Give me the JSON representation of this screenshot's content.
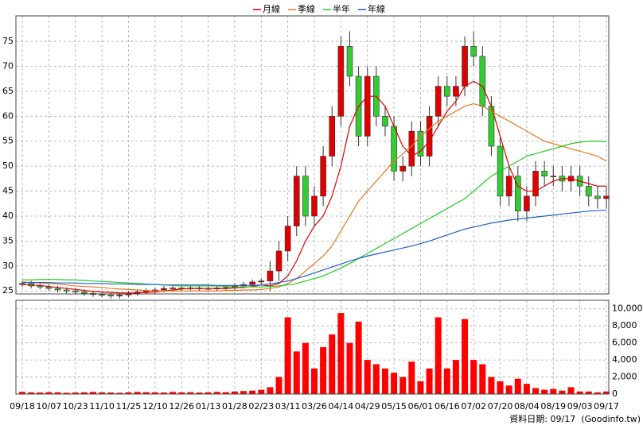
{
  "chart_data": [
    {
      "type": "candlestick",
      "x": [
        0,
        1,
        2,
        3,
        4,
        5,
        6,
        7,
        8,
        9,
        10,
        11,
        12,
        13,
        14,
        15,
        16,
        17,
        18,
        19,
        20,
        21,
        22,
        23,
        24,
        25,
        26,
        27,
        28,
        29,
        30,
        31,
        32,
        33,
        34,
        35,
        36,
        37,
        38,
        39,
        40,
        41,
        42,
        43,
        44,
        45,
        46,
        47,
        48,
        49,
        50,
        51,
        52,
        53,
        54,
        55,
        56,
        57,
        58,
        59,
        60,
        61,
        62,
        63,
        64,
        65,
        66
      ],
      "open": [
        26.3,
        26.5,
        26,
        25.8,
        25.5,
        25.2,
        25,
        24.8,
        24.5,
        24.3,
        24.2,
        24,
        24.2,
        24.5,
        24.8,
        25,
        25.2,
        25.5,
        25.6,
        25.5,
        25.6,
        25.5,
        25.4,
        25.6,
        25.7,
        26,
        26.3,
        26.8,
        27,
        29,
        33,
        38,
        48,
        40,
        44,
        52,
        60,
        74,
        68,
        56,
        68,
        60,
        58,
        49,
        50,
        57,
        52,
        60,
        66,
        64,
        66,
        74,
        72,
        62,
        54,
        44,
        48,
        41,
        44,
        49,
        48,
        48,
        47,
        48,
        46,
        44,
        43.5
      ],
      "high": [
        27,
        27,
        26.5,
        26.3,
        26,
        25.7,
        25.5,
        25.3,
        25,
        24.8,
        24.7,
        24.7,
        25,
        25.3,
        25.5,
        25.7,
        26,
        26.1,
        26.1,
        26.1,
        26.1,
        26,
        26.1,
        26.2,
        26.5,
        26.8,
        27.3,
        27.5,
        31,
        35,
        40,
        50,
        50,
        46,
        54,
        62,
        76,
        77,
        70,
        70,
        70,
        62,
        60,
        52,
        59,
        59,
        62,
        68,
        68,
        68,
        76,
        77,
        74,
        64,
        56,
        50,
        50,
        46,
        51,
        51,
        50,
        50,
        50,
        50,
        48,
        46,
        46
      ],
      "low": [
        25.8,
        25.5,
        25.3,
        25,
        24.7,
        24.5,
        24.3,
        24,
        23.8,
        23.7,
        23.5,
        23.5,
        23.7,
        24,
        24.3,
        24.5,
        24.7,
        25,
        25,
        25,
        25,
        24.9,
        24.9,
        25.1,
        25.2,
        25.5,
        25.8,
        26.3,
        25,
        27,
        31,
        36,
        38,
        38,
        42,
        50,
        58,
        66,
        54,
        54,
        58,
        56,
        47,
        47,
        48,
        50,
        50,
        58,
        62,
        62,
        64,
        70,
        60,
        52,
        42,
        42,
        39,
        39,
        42,
        46,
        46,
        45,
        45,
        44,
        42,
        41.5,
        41.5
      ],
      "close": [
        26.5,
        26,
        25.8,
        25.5,
        25.2,
        25,
        24.8,
        24.5,
        24.3,
        24.2,
        24,
        24.2,
        24.5,
        24.8,
        25,
        25.2,
        25.5,
        25.6,
        25.5,
        25.6,
        25.5,
        25.4,
        25.6,
        25.7,
        26,
        26.3,
        26.8,
        27,
        29,
        33,
        38,
        48,
        40,
        44,
        52,
        60,
        74,
        68,
        56,
        68,
        60,
        58,
        49,
        50,
        57,
        52,
        60,
        66,
        64,
        66,
        74,
        72,
        62,
        54,
        44,
        48,
        41,
        44,
        49,
        48,
        48,
        47,
        48,
        46,
        44,
        43.5,
        44
      ],
      "up_color": "#e00000",
      "down_color": "#33cc33",
      "series": [
        {
          "name": "月線",
          "color": "#dd0000",
          "values": [
            26.3,
            26.2,
            26.1,
            25.9,
            25.7,
            25.5,
            25.3,
            25.1,
            24.9,
            24.8,
            24.7,
            24.6,
            24.6,
            24.6,
            24.7,
            24.8,
            25,
            25.2,
            25.4,
            25.5,
            25.5,
            25.5,
            25.5,
            25.5,
            25.6,
            25.7,
            25.9,
            26.2,
            26,
            26.5,
            28,
            31,
            35,
            38,
            40,
            44,
            50,
            58,
            62,
            64,
            64,
            62,
            58,
            54,
            52,
            53,
            55,
            58,
            61,
            63,
            66,
            67,
            66,
            62,
            56,
            50,
            46,
            45,
            45,
            46,
            47,
            47.5,
            47.5,
            47,
            46.5,
            46,
            46
          ]
        },
        {
          "name": "季線",
          "color": "#e87722",
          "values": [
            26.8,
            26.7,
            26.6,
            26.5,
            26.4,
            26.2,
            26,
            25.9,
            25.8,
            25.7,
            25.5,
            25.4,
            25.3,
            25.2,
            25.1,
            25,
            25,
            25,
            25,
            25,
            25,
            25,
            25,
            25.1,
            25.1,
            25.2,
            25.2,
            25.3,
            25.5,
            25.8,
            26.5,
            27.5,
            29,
            30.5,
            32,
            34,
            37,
            40,
            43,
            45,
            47,
            49,
            51,
            52.5,
            54,
            56,
            57.5,
            59,
            60,
            61,
            62,
            62.5,
            62,
            61,
            60,
            59,
            58,
            57,
            56,
            55,
            54.5,
            54,
            53.5,
            53,
            52.5,
            52,
            51
          ]
        },
        {
          "name": "半年",
          "color": "#22cc22",
          "values": [
            27.2,
            27.2,
            27.3,
            27.3,
            27.3,
            27.2,
            27.2,
            27.1,
            27,
            26.9,
            26.8,
            26.7,
            26.6,
            26.5,
            26.4,
            26.3,
            26.2,
            26.1,
            26,
            26,
            26,
            26,
            26,
            25.9,
            25.8,
            25.8,
            25.8,
            25.8,
            25.9,
            26,
            26.2,
            26.5,
            27,
            27.5,
            28,
            28.8,
            29.6,
            30.5,
            31.5,
            32.5,
            33.5,
            34.5,
            35.5,
            36.5,
            37.5,
            38.5,
            39.5,
            40.5,
            41.5,
            42.5,
            43.5,
            45,
            46.5,
            48,
            49,
            50,
            51,
            52,
            52.5,
            53,
            53.5,
            54,
            54.5,
            54.8,
            55,
            55,
            54.9
          ]
        },
        {
          "name": "年線",
          "color": "#1f5fcf",
          "values": [
            26.7,
            26.7,
            26.7,
            26.7,
            26.6,
            26.6,
            26.6,
            26.5,
            26.5,
            26.5,
            26.4,
            26.4,
            26.4,
            26.3,
            26.3,
            26.3,
            26.2,
            26.2,
            26.2,
            26.2,
            26.2,
            26.2,
            26.1,
            26.1,
            26.1,
            26.1,
            26.1,
            26.2,
            26.4,
            26.7,
            27,
            27.5,
            28,
            28.6,
            29.2,
            29.8,
            30.4,
            31,
            31.5,
            32,
            32.4,
            32.8,
            33.2,
            33.6,
            34,
            34.5,
            35,
            35.6,
            36.2,
            36.8,
            37.4,
            37.8,
            38.2,
            38.6,
            38.9,
            39.2,
            39.4,
            39.6,
            39.8,
            40,
            40.2,
            40.4,
            40.6,
            40.8,
            41,
            41.1,
            41.2
          ]
        }
      ],
      "xlim": [
        -0.72,
        66.27
      ],
      "ylim": [
        24.4,
        80.1
      ],
      "yticks": [
        25,
        30,
        35,
        40,
        45,
        50,
        55,
        60,
        65,
        70,
        75
      ],
      "grid": true,
      "legend": "top"
    },
    {
      "type": "bar",
      "values": [
        250,
        200,
        180,
        220,
        200,
        150,
        180,
        200,
        250,
        200,
        180,
        150,
        200,
        250,
        220,
        200,
        180,
        250,
        200,
        220,
        180,
        200,
        250,
        220,
        300,
        350,
        400,
        500,
        800,
        2000,
        9000,
        5000,
        6000,
        3000,
        5500,
        7000,
        9500,
        6000,
        8500,
        4000,
        3500,
        3000,
        2500,
        2000,
        3800,
        1500,
        3000,
        9000,
        3000,
        4000,
        8800,
        4000,
        3500,
        2000,
        1500,
        1000,
        1800,
        1200,
        700,
        500,
        600,
        400,
        800,
        300,
        300,
        200,
        300
      ],
      "color": "#ff0000",
      "ylim": [
        0,
        11000
      ],
      "yticks": [
        0,
        {
          "value": 2000,
          "label": "2,000"
        },
        {
          "value": 4000,
          "label": "4,000"
        },
        {
          "value": 6000,
          "label": "6,000"
        },
        {
          "value": 8000,
          "label": "8,000"
        },
        {
          "value": 10000,
          "label": "10,000"
        }
      ],
      "xticks": [
        {
          "value": 0,
          "label": "09/18"
        },
        {
          "value": 3,
          "label": "10/07"
        },
        {
          "value": 6,
          "label": "10/23"
        },
        {
          "value": 9,
          "label": "11/10"
        },
        {
          "value": 12,
          "label": "11/25"
        },
        {
          "value": 15,
          "label": "12/10"
        },
        {
          "value": 18,
          "label": "12/26"
        },
        {
          "value": 21,
          "label": "01/13"
        },
        {
          "value": 24,
          "label": "01/28"
        },
        {
          "value": 27,
          "label": "02/23"
        },
        {
          "value": 30,
          "label": "03/11"
        },
        {
          "value": 33,
          "label": "03/26"
        },
        {
          "value": 36,
          "label": "04/14"
        },
        {
          "value": 39,
          "label": "04/29"
        },
        {
          "value": 42,
          "label": "05/15"
        },
        {
          "value": 45,
          "label": "06/01"
        },
        {
          "value": 48,
          "label": "06/16"
        },
        {
          "value": 51,
          "label": "07/02"
        },
        {
          "value": 54,
          "label": "07/20"
        },
        {
          "value": 57,
          "label": "08/04"
        },
        {
          "value": 60,
          "label": "08/19"
        },
        {
          "value": 63,
          "label": "09/03"
        },
        {
          "value": 66,
          "label": "09/17"
        }
      ],
      "grid": true
    }
  ],
  "footer": "資料日期: 09/17  (Goodinfo.tw)"
}
